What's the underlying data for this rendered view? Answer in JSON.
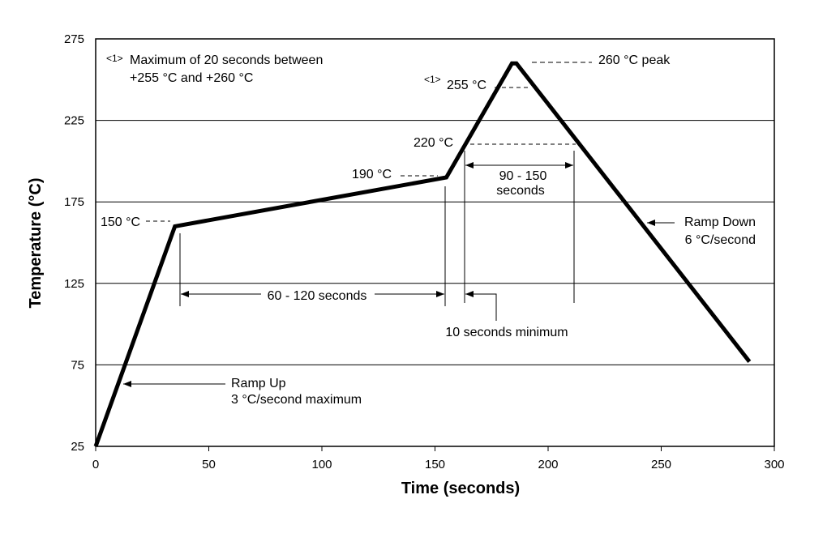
{
  "chart_data": {
    "type": "line",
    "title": "",
    "xlabel": "Time (seconds)",
    "ylabel": "Temperature (°C)",
    "xlim": [
      0,
      300
    ],
    "ylim": [
      25,
      275
    ],
    "xticks": [
      0,
      50,
      100,
      150,
      200,
      250,
      300
    ],
    "yticks": [
      25,
      75,
      125,
      175,
      225,
      275
    ],
    "grid": "horizontal",
    "series": [
      {
        "x": [
          0,
          35,
          155,
          184,
          186,
          289
        ],
        "y": [
          25,
          160,
          190,
          260,
          260,
          77
        ]
      }
    ],
    "annotations": {
      "note_line1": "Maximum of 20 seconds between",
      "note_line2": "+255 °C and +260 °C",
      "note_marker": "<1>",
      "peak": "260 °C peak",
      "t255_marker": "<1>",
      "t255": "255 °C",
      "t220": "220 °C",
      "t190": "190 °C",
      "t150": "150 °C",
      "duration_90_150_line1": "90 - 150",
      "duration_90_150_line2": "seconds",
      "duration_60_120": "60 - 120 seconds",
      "min_10": "10 seconds minimum",
      "ramp_down_line1": "Ramp Down",
      "ramp_down_line2": "6 °C/second",
      "ramp_up_line1": "Ramp Up",
      "ramp_up_line2": "3 °C/second maximum"
    }
  }
}
